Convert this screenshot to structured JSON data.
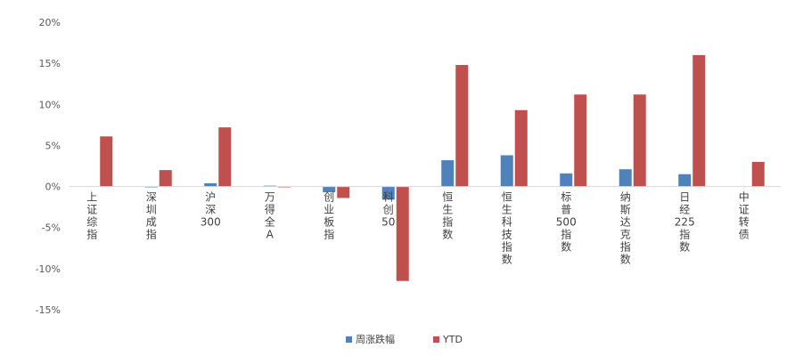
{
  "chart_data": {
    "type": "bar",
    "categories": [
      "上证综指",
      "深圳成指",
      "沪深300",
      "万得全A",
      "创业板指",
      "科创50",
      "恒生指数",
      "恒生科技指数",
      "标普500指数",
      "纳斯达克指数",
      "日经225指数",
      "中证转债"
    ],
    "series": [
      {
        "name": "周涨跌幅",
        "color": "#4F81BD",
        "values": [
          0.0,
          -0.1,
          0.4,
          0.1,
          -0.7,
          -1.6,
          3.2,
          3.8,
          1.6,
          2.1,
          1.5,
          0.0
        ]
      },
      {
        "name": "YTD",
        "color": "#C0504D",
        "values": [
          6.1,
          2.0,
          7.2,
          -0.1,
          -1.4,
          -11.5,
          14.8,
          9.3,
          11.2,
          11.2,
          16.0,
          3.0
        ]
      }
    ],
    "yticks": [
      "20%",
      "15%",
      "10%",
      "5%",
      "0%",
      "-5%",
      "-10%",
      "-15%"
    ],
    "ylim": [
      -15,
      20
    ],
    "grid": false,
    "legend_position": "bottom"
  }
}
